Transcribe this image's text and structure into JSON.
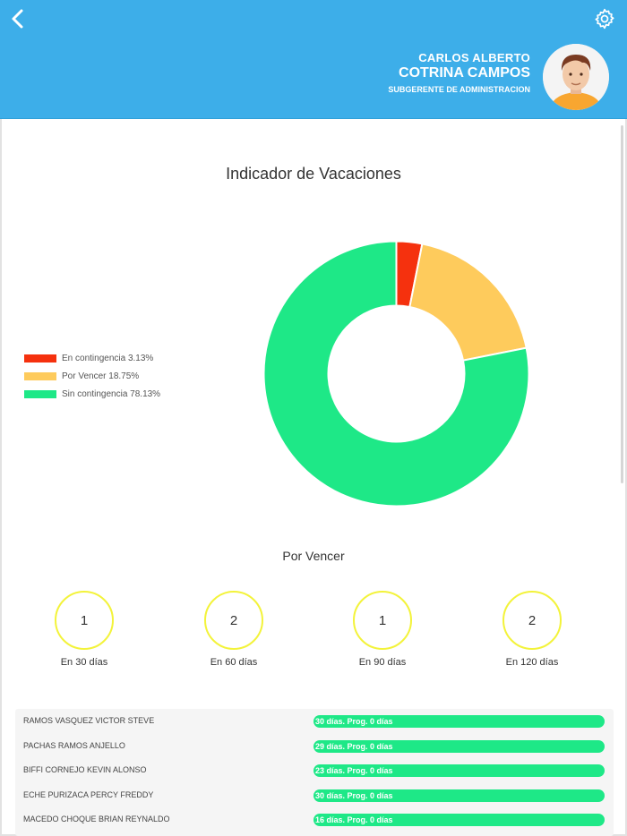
{
  "header": {
    "first_name": "CARLOS ALBERTO",
    "last_name": "COTRINA CAMPOS",
    "role": "SUBGERENTE DE ADMINISTRACION",
    "back_icon": "chevron-left-icon",
    "settings_icon": "gear-icon",
    "background": "#3daee9"
  },
  "indicator": {
    "title": "Indicador de Vacaciones",
    "legend": [
      {
        "label": "En contingencia 3.13%",
        "color": "#f5310e"
      },
      {
        "label": "Por Vencer 18.75%",
        "color": "#fecb5c"
      },
      {
        "label": "Sin contingencia 78.13%",
        "color": "#1ee887"
      }
    ]
  },
  "chart_data": {
    "type": "pie",
    "title": "Indicador de Vacaciones",
    "donut": true,
    "legend_position": "left",
    "categories": [
      "En contingencia",
      "Por Vencer",
      "Sin contingencia"
    ],
    "values": [
      3.13,
      18.75,
      78.13
    ],
    "colors": [
      "#f5310e",
      "#fecb5c",
      "#1ee887"
    ]
  },
  "por_vencer": {
    "title": "Por Vencer",
    "counters": [
      {
        "value": "1",
        "label": "En 30 días"
      },
      {
        "value": "2",
        "label": "En 60 días"
      },
      {
        "value": "1",
        "label": "En 90 días"
      },
      {
        "value": "2",
        "label": "En 120 días"
      }
    ]
  },
  "employees": [
    {
      "name": "RAMOS VASQUEZ VICTOR STEVE",
      "status": "30 días. Prog. 0 días"
    },
    {
      "name": "PACHAS RAMOS ANJELLO",
      "status": "29 días. Prog. 0 días"
    },
    {
      "name": "BIFFI CORNEJO KEVIN ALONSO",
      "status": "23 días. Prog. 0 días"
    },
    {
      "name": "ECHE PURIZACA PERCY FREDDY",
      "status": "30 días. Prog. 0 días"
    },
    {
      "name": "MACEDO CHOQUE BRIAN REYNALDO",
      "status": "16 días. Prog. 0 días"
    }
  ]
}
